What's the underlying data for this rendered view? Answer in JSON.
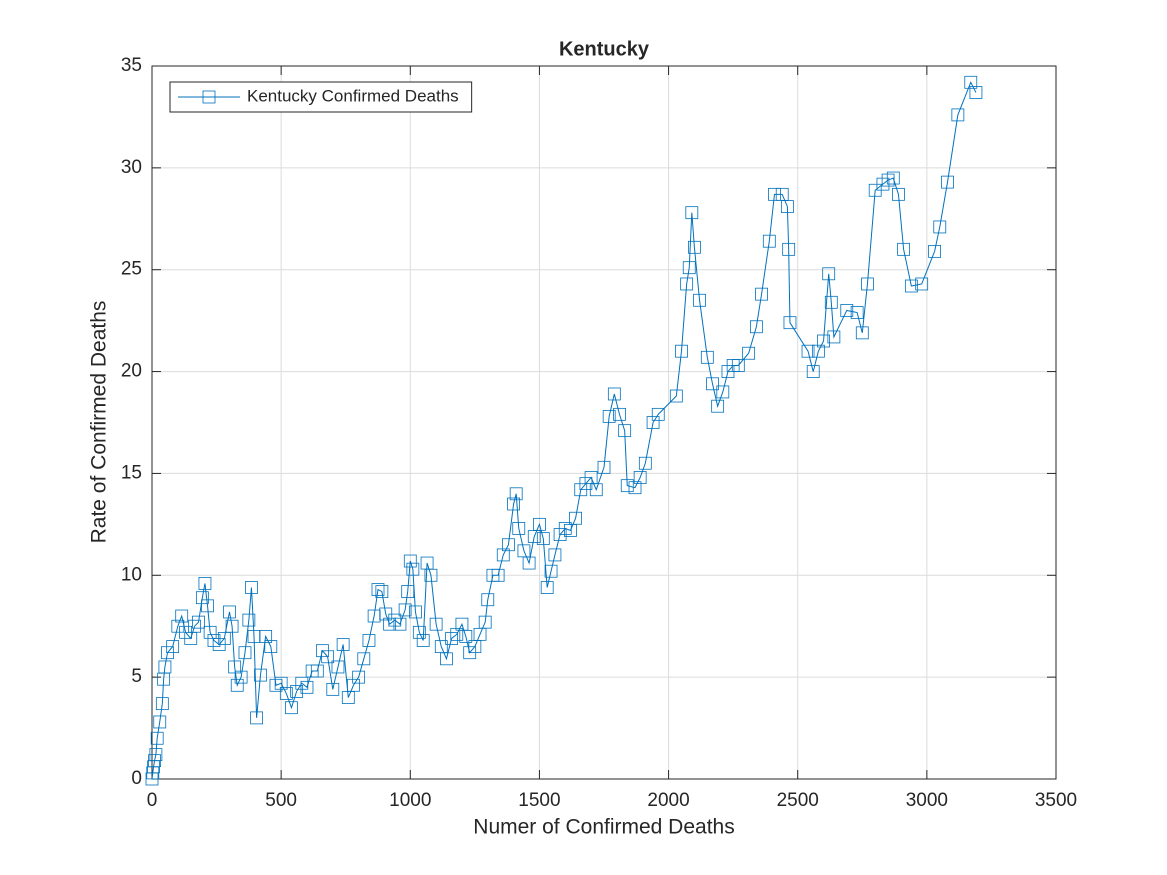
{
  "chart_data": {
    "type": "line",
    "title": "Kentucky",
    "xlabel": "Numer of Confirmed Deaths",
    "ylabel": "Rate of Confirmed Deaths",
    "xlim": [
      0,
      3500
    ],
    "xticks": [
      0,
      500,
      1000,
      1500,
      2000,
      2500,
      3000,
      3500
    ],
    "ylim": [
      0,
      35
    ],
    "yticks": [
      0,
      5,
      10,
      15,
      20,
      25,
      30,
      35
    ],
    "grid": true,
    "legend": "northwest",
    "marker": "square",
    "x": [
      0,
      3,
      6,
      10,
      15,
      20,
      30,
      40,
      45,
      50,
      60,
      80,
      100,
      115,
      130,
      150,
      165,
      180,
      195,
      205,
      215,
      225,
      240,
      260,
      280,
      300,
      310,
      320,
      330,
      345,
      360,
      375,
      385,
      395,
      405,
      420,
      440,
      460,
      480,
      500,
      520,
      540,
      560,
      580,
      600,
      620,
      640,
      660,
      680,
      700,
      720,
      740,
      760,
      780,
      800,
      820,
      840,
      860,
      875,
      890,
      905,
      920,
      940,
      960,
      980,
      990,
      1000,
      1010,
      1020,
      1035,
      1050,
      1065,
      1080,
      1100,
      1120,
      1140,
      1160,
      1180,
      1200,
      1215,
      1230,
      1250,
      1270,
      1290,
      1300,
      1320,
      1340,
      1360,
      1380,
      1400,
      1410,
      1420,
      1440,
      1460,
      1480,
      1500,
      1515,
      1530,
      1545,
      1560,
      1580,
      1600,
      1620,
      1640,
      1660,
      1680,
      1700,
      1720,
      1750,
      1770,
      1790,
      1810,
      1830,
      1840,
      1870,
      1890,
      1910,
      1940,
      1960,
      2030,
      2050,
      2070,
      2080,
      2090,
      2100,
      2120,
      2150,
      2170,
      2190,
      2210,
      2230,
      2250,
      2270,
      2310,
      2340,
      2360,
      2390,
      2410,
      2440,
      2460,
      2465,
      2470,
      2540,
      2560,
      2580,
      2600,
      2620,
      2630,
      2640,
      2690,
      2730,
      2750,
      2770,
      2800,
      2830,
      2850,
      2870,
      2890,
      2910,
      2940,
      2980,
      3030,
      3050,
      3080,
      3120,
      3170,
      3190
    ],
    "series": [
      {
        "name": "Kentucky Confirmed Deaths",
        "color": "#0072bd",
        "values": [
          0,
          0.3,
          0.6,
          0.9,
          1.2,
          2,
          2.8,
          3.7,
          4.9,
          5.5,
          6.2,
          6.5,
          7.5,
          8,
          7.2,
          6.9,
          7.5,
          7.7,
          8.9,
          9.6,
          8.5,
          7.2,
          6.8,
          6.6,
          6.9,
          8.2,
          7.5,
          5.5,
          4.6,
          5,
          6.2,
          7.8,
          9.4,
          7,
          3,
          5.1,
          7,
          6.5,
          4.6,
          4.7,
          4.2,
          3.5,
          4.3,
          4.7,
          4.5,
          5.3,
          5.3,
          6.3,
          6,
          4.4,
          5.5,
          6.6,
          4,
          4.6,
          5,
          5.9,
          6.8,
          8,
          9.3,
          9.2,
          8.1,
          7.6,
          7.8,
          7.6,
          8.3,
          9.2,
          10.7,
          10.3,
          8.2,
          7.2,
          6.8,
          10.6,
          10,
          7.6,
          6.5,
          5.9,
          6.9,
          7.1,
          7.6,
          7,
          6.2,
          6.5,
          7.1,
          7.7,
          8.8,
          10,
          10,
          11,
          11.5,
          13.5,
          14,
          12.3,
          11.2,
          10.6,
          11.9,
          12.5,
          11.8,
          9.4,
          10.2,
          11,
          12,
          12.3,
          12.2,
          12.8,
          14.2,
          14.5,
          14.8,
          14.2,
          15.3,
          17.8,
          18.9,
          17.9,
          17.1,
          14.4,
          14.3,
          14.8,
          15.5,
          17.5,
          17.9,
          18.8,
          21,
          24.3,
          25.1,
          27.8,
          26.1,
          23.5,
          20.7,
          19.4,
          18.3,
          19,
          20,
          20.3,
          20.3,
          20.9,
          22.2,
          23.8,
          26.4,
          28.7,
          28.7,
          28.1,
          26,
          22.4,
          21,
          20,
          21,
          21.5,
          24.8,
          23.4,
          21.7,
          23,
          22.9,
          21.9,
          24.3,
          28.9,
          29.2,
          29.4,
          29.5,
          28.7,
          26,
          24.2,
          24.3,
          25.9,
          27.1,
          29.3,
          32.6,
          34.2,
          33.7
        ]
      }
    ]
  }
}
